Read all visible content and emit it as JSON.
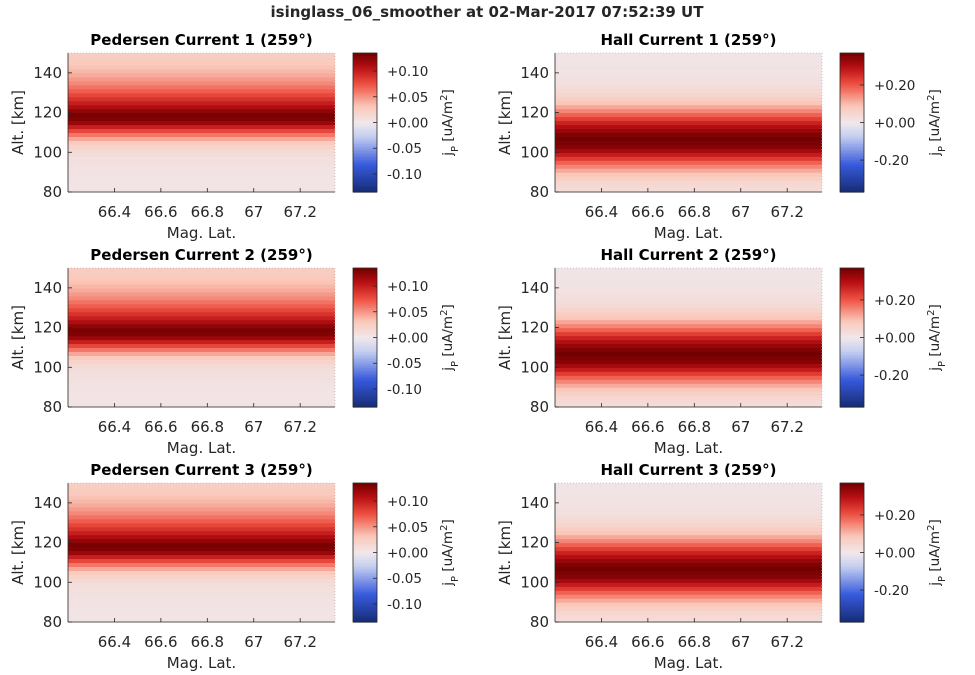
{
  "figure": {
    "suptitle": "isinglass_06_smoother at 02-Mar-2017 07:52:39 UT"
  },
  "chart_data": [
    {
      "type": "heatmap",
      "title": "Pedersen Current 1 (259°)",
      "xlabel": "Mag. Lat.",
      "ylabel": "Alt. [km]",
      "xlim": [
        66.2,
        67.35
      ],
      "ylim": [
        80,
        150
      ],
      "xticks": [
        66.4,
        66.6,
        66.8,
        67,
        67.2
      ],
      "xticklabels": [
        "66.4",
        "66.6",
        "66.8",
        "67",
        "67.2"
      ],
      "yticks": [
        80,
        100,
        120,
        140
      ],
      "yticklabels": [
        "80",
        "100",
        "120",
        "140"
      ],
      "colormap": "red-white-blue (diverging)",
      "colorbar": {
        "label": "j_P [uA/m^2]",
        "range": [
          -0.135,
          0.135
        ],
        "ticks": [
          0.1,
          0.05,
          0.0,
          -0.05,
          -0.1
        ],
        "ticklabels": [
          "+0.10",
          "+0.05",
          "+0.00",
          "-0.05",
          "-0.10"
        ]
      },
      "profile": {
        "peak_altitude_km": 118,
        "peak_value": 0.135,
        "uniform_in_latitude": true
      },
      "altitude_km": [
        80,
        85,
        90,
        95,
        100,
        105,
        110,
        115,
        118,
        120,
        125,
        130,
        135,
        140,
        145,
        150
      ],
      "value": [
        0.005,
        0.005,
        0.006,
        0.008,
        0.012,
        0.028,
        0.07,
        0.12,
        0.135,
        0.13,
        0.1,
        0.075,
        0.055,
        0.04,
        0.03,
        0.025
      ]
    },
    {
      "type": "heatmap",
      "title": "Hall Current 1 (259°)",
      "xlabel": "Mag. Lat.",
      "ylabel": "Alt. [km]",
      "xlim": [
        66.2,
        67.35
      ],
      "ylim": [
        80,
        150
      ],
      "xticks": [
        66.4,
        66.6,
        66.8,
        67,
        67.2
      ],
      "xticklabels": [
        "66.4",
        "66.6",
        "66.8",
        "67",
        "67.2"
      ],
      "yticks": [
        80,
        100,
        120,
        140
      ],
      "yticklabels": [
        "80",
        "100",
        "120",
        "140"
      ],
      "colormap": "red-white-blue (diverging)",
      "colorbar": {
        "label": "j_P [uA/m^2]",
        "range": [
          -0.37,
          0.37
        ],
        "ticks": [
          0.2,
          0.0,
          -0.2
        ],
        "ticklabels": [
          "+0.20",
          "+0.00",
          "-0.20"
        ]
      },
      "profile": {
        "peak_altitude_km": 107,
        "peak_value": 0.37,
        "uniform_in_latitude": true
      },
      "altitude_km": [
        80,
        85,
        90,
        95,
        100,
        103,
        107,
        110,
        115,
        120,
        125,
        130,
        135,
        140,
        145,
        150
      ],
      "value": [
        0.03,
        0.05,
        0.1,
        0.19,
        0.3,
        0.35,
        0.37,
        0.35,
        0.27,
        0.17,
        0.09,
        0.045,
        0.025,
        0.015,
        0.012,
        0.01
      ]
    },
    {
      "type": "heatmap",
      "title": "Pedersen Current 2 (259°)",
      "xlabel": "Mag. Lat.",
      "ylabel": "Alt. [km]",
      "xlim": [
        66.2,
        67.35
      ],
      "ylim": [
        80,
        150
      ],
      "xticks": [
        66.4,
        66.6,
        66.8,
        67,
        67.2
      ],
      "xticklabels": [
        "66.4",
        "66.6",
        "66.8",
        "67",
        "67.2"
      ],
      "yticks": [
        80,
        100,
        120,
        140
      ],
      "yticklabels": [
        "80",
        "100",
        "120",
        "140"
      ],
      "colormap": "red-white-blue (diverging)",
      "colorbar": {
        "label": "j_P [uA/m^2]",
        "range": [
          -0.135,
          0.135
        ],
        "ticks": [
          0.1,
          0.05,
          0.0,
          -0.05,
          -0.1
        ],
        "ticklabels": [
          "+0.10",
          "+0.05",
          "+0.00",
          "-0.05",
          "-0.10"
        ]
      },
      "profile": {
        "peak_altitude_km": 118,
        "peak_value": 0.135,
        "uniform_in_latitude": true
      },
      "altitude_km": [
        80,
        85,
        90,
        95,
        100,
        105,
        110,
        115,
        118,
        120,
        125,
        130,
        135,
        140,
        145,
        150
      ],
      "value": [
        0.005,
        0.005,
        0.006,
        0.008,
        0.012,
        0.028,
        0.07,
        0.12,
        0.135,
        0.13,
        0.1,
        0.075,
        0.055,
        0.04,
        0.03,
        0.025
      ]
    },
    {
      "type": "heatmap",
      "title": "Hall Current 2 (259°)",
      "xlabel": "Mag. Lat.",
      "ylabel": "Alt. [km]",
      "xlim": [
        66.2,
        67.35
      ],
      "ylim": [
        80,
        150
      ],
      "xticks": [
        66.4,
        66.6,
        66.8,
        67,
        67.2
      ],
      "xticklabels": [
        "66.4",
        "66.6",
        "66.8",
        "67",
        "67.2"
      ],
      "yticks": [
        80,
        100,
        120,
        140
      ],
      "yticklabels": [
        "80",
        "100",
        "120",
        "140"
      ],
      "colormap": "red-white-blue (diverging)",
      "colorbar": {
        "label": "j_P [uA/m^2]",
        "range": [
          -0.37,
          0.37
        ],
        "ticks": [
          0.2,
          0.0,
          -0.2
        ],
        "ticklabels": [
          "+0.20",
          "+0.00",
          "-0.20"
        ]
      },
      "profile": {
        "peak_altitude_km": 107,
        "peak_value": 0.37,
        "uniform_in_latitude": true
      },
      "altitude_km": [
        80,
        85,
        90,
        95,
        100,
        103,
        107,
        110,
        115,
        120,
        125,
        130,
        135,
        140,
        145,
        150
      ],
      "value": [
        0.03,
        0.05,
        0.1,
        0.19,
        0.3,
        0.35,
        0.37,
        0.35,
        0.27,
        0.17,
        0.09,
        0.045,
        0.025,
        0.015,
        0.012,
        0.01
      ]
    },
    {
      "type": "heatmap",
      "title": "Pedersen Current 3 (259°)",
      "xlabel": "Mag. Lat.",
      "ylabel": "Alt. [km]",
      "xlim": [
        66.2,
        67.35
      ],
      "ylim": [
        80,
        150
      ],
      "xticks": [
        66.4,
        66.6,
        66.8,
        67,
        67.2
      ],
      "xticklabels": [
        "66.4",
        "66.6",
        "66.8",
        "67",
        "67.2"
      ],
      "yticks": [
        80,
        100,
        120,
        140
      ],
      "yticklabels": [
        "80",
        "100",
        "120",
        "140"
      ],
      "colormap": "red-white-blue (diverging)",
      "colorbar": {
        "label": "j_P [uA/m^2]",
        "range": [
          -0.135,
          0.135
        ],
        "ticks": [
          0.1,
          0.05,
          0.0,
          -0.05,
          -0.1
        ],
        "ticklabels": [
          "+0.10",
          "+0.05",
          "+0.00",
          "-0.05",
          "-0.10"
        ]
      },
      "profile": {
        "peak_altitude_km": 118,
        "peak_value": 0.135,
        "uniform_in_latitude": true
      },
      "altitude_km": [
        80,
        85,
        90,
        95,
        100,
        105,
        110,
        115,
        118,
        120,
        125,
        130,
        135,
        140,
        145,
        150
      ],
      "value": [
        0.005,
        0.005,
        0.006,
        0.008,
        0.012,
        0.028,
        0.07,
        0.12,
        0.135,
        0.13,
        0.1,
        0.075,
        0.055,
        0.04,
        0.03,
        0.025
      ]
    },
    {
      "type": "heatmap",
      "title": "Hall Current 3 (259°)",
      "xlabel": "Mag. Lat.",
      "ylabel": "Alt. [km]",
      "xlim": [
        66.2,
        67.35
      ],
      "ylim": [
        80,
        150
      ],
      "xticks": [
        66.4,
        66.6,
        66.8,
        67,
        67.2
      ],
      "xticklabels": [
        "66.4",
        "66.6",
        "66.8",
        "67",
        "67.2"
      ],
      "yticks": [
        80,
        100,
        120,
        140
      ],
      "yticklabels": [
        "80",
        "100",
        "120",
        "140"
      ],
      "colormap": "red-white-blue (diverging)",
      "colorbar": {
        "label": "j_P [uA/m^2]",
        "range": [
          -0.37,
          0.37
        ],
        "ticks": [
          0.2,
          0.0,
          -0.2
        ],
        "ticklabels": [
          "+0.20",
          "+0.00",
          "-0.20"
        ]
      },
      "profile": {
        "peak_altitude_km": 107,
        "peak_value": 0.37,
        "uniform_in_latitude": true
      },
      "altitude_km": [
        80,
        85,
        90,
        95,
        100,
        103,
        107,
        110,
        115,
        120,
        125,
        130,
        135,
        140,
        145,
        150
      ],
      "value": [
        0.03,
        0.05,
        0.1,
        0.19,
        0.3,
        0.35,
        0.37,
        0.35,
        0.27,
        0.17,
        0.09,
        0.045,
        0.025,
        0.015,
        0.012,
        0.01
      ]
    }
  ]
}
